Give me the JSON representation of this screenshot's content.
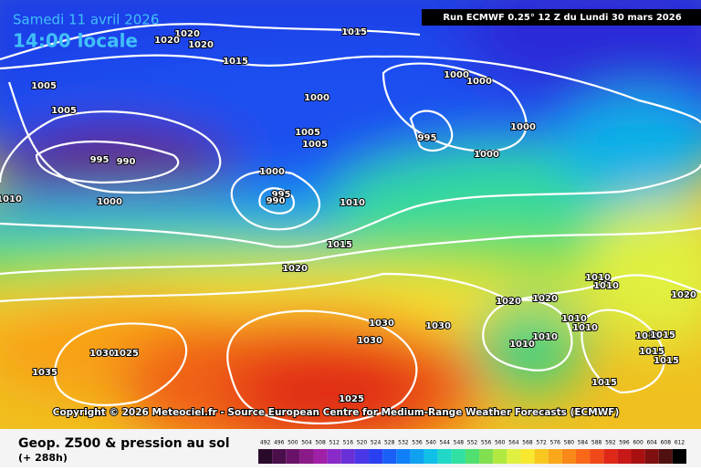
{
  "header": {
    "date": "Samedi 11 avril 2026",
    "time": "14:00 locale",
    "run": "Run ECMWF 0.25° 12 Z du Lundi 30 mars 2026"
  },
  "map": {
    "isobar_labels": [
      "1020",
      "1020",
      "1020",
      "1015",
      "1015",
      "1005",
      "1005",
      "1000",
      "1000",
      "1000",
      "995",
      "1000",
      "1000",
      "1005",
      "1005",
      "995",
      "990",
      "1000",
      "995",
      "990",
      "1000",
      "1010",
      "1010",
      "1015",
      "1020",
      "1020",
      "1020",
      "1010",
      "1010",
      "1030",
      "1030",
      "1030",
      "1010",
      "1010",
      "1010",
      "1010",
      "1030",
      "1025",
      "1035",
      "1025",
      "1020",
      "1015",
      "1015",
      "1015",
      "1015",
      "1015"
    ],
    "copyright": "Copyright © 2026 Meteociel.fr - Source European Centre for Medium-Range Weather Forecasts (ECMWF)"
  },
  "footer": {
    "title": "Geop. Z500 & pression au sol",
    "subtitle": "(+ 288h)"
  },
  "legend": {
    "values": [
      492,
      496,
      500,
      504,
      508,
      512,
      516,
      520,
      524,
      528,
      532,
      536,
      540,
      544,
      548,
      552,
      556,
      560,
      564,
      568,
      572,
      576,
      580,
      584,
      588,
      592,
      596,
      600,
      604,
      608,
      612
    ],
    "colors": [
      "#2a0a2a",
      "#4a0e4a",
      "#6a1268",
      "#8a1a88",
      "#a020a8",
      "#8a2ac8",
      "#6a30d8",
      "#4a38e8",
      "#2a40f0",
      "#1a60f8",
      "#1080f8",
      "#10a0f0",
      "#10c0e8",
      "#20d8c8",
      "#30e0a0",
      "#50e070",
      "#80e050",
      "#b0e840",
      "#e0f040",
      "#f8e830",
      "#f8c820",
      "#f8a818",
      "#f88818",
      "#f86818",
      "#f04818",
      "#e02818",
      "#c81818",
      "#a81010",
      "#801010",
      "#501010",
      "#000000"
    ]
  }
}
